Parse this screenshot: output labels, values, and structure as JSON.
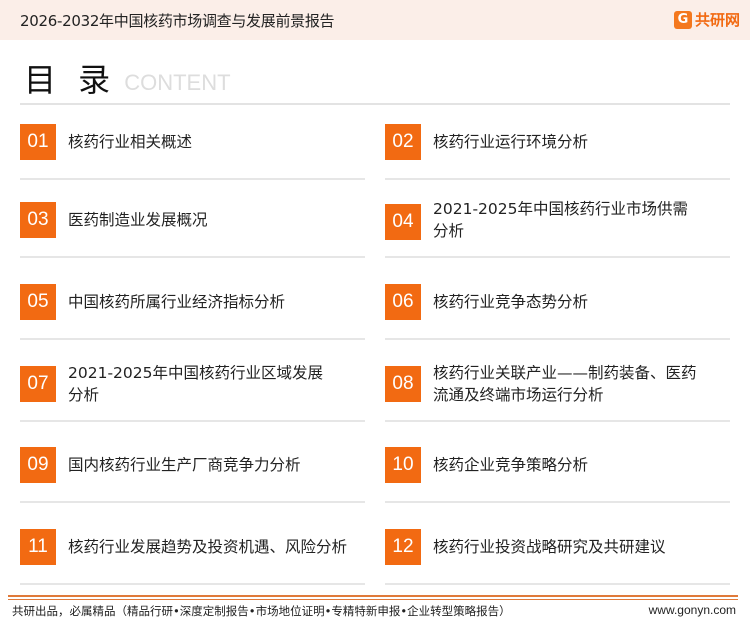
{
  "header": {
    "title": "2026-2032年中国核药市场调查与发展前景报告",
    "logo_text": "共研网",
    "logo_mark": "G"
  },
  "toc": {
    "title": "目 录",
    "subtitle": "CONTENT"
  },
  "items": [
    {
      "num": "01",
      "label": "核药行业相关概述"
    },
    {
      "num": "02",
      "label": "核药行业运行环境分析"
    },
    {
      "num": "03",
      "label": "医药制造业发展概况"
    },
    {
      "num": "04",
      "label": "2021-2025年中国核药行业市场供需分析"
    },
    {
      "num": "05",
      "label": "中国核药所属行业经济指标分析"
    },
    {
      "num": "06",
      "label": "核药行业竞争态势分析"
    },
    {
      "num": "07",
      "label": "2021-2025年中国核药行业区域发展分析"
    },
    {
      "num": "08",
      "label": "核药行业关联产业——制药装备、医药流通及终端市场运行分析"
    },
    {
      "num": "09",
      "label": "国内核药行业生产厂商竞争力分析"
    },
    {
      "num": "10",
      "label": "核药企业竞争策略分析"
    },
    {
      "num": "11",
      "label": "核药行业发展趋势及投资机遇、风险分析"
    },
    {
      "num": "12",
      "label": "核药行业投资战略研究及共研建议"
    }
  ],
  "footer": {
    "text": "共研出品，必属精品（精品行研•深度定制报告•市场地位证明•专精特新申报•企业转型策略报告）",
    "url": "www.gonyn.com"
  },
  "colors": {
    "accent": "#f26a12",
    "header_bg": "#fbeee8"
  }
}
